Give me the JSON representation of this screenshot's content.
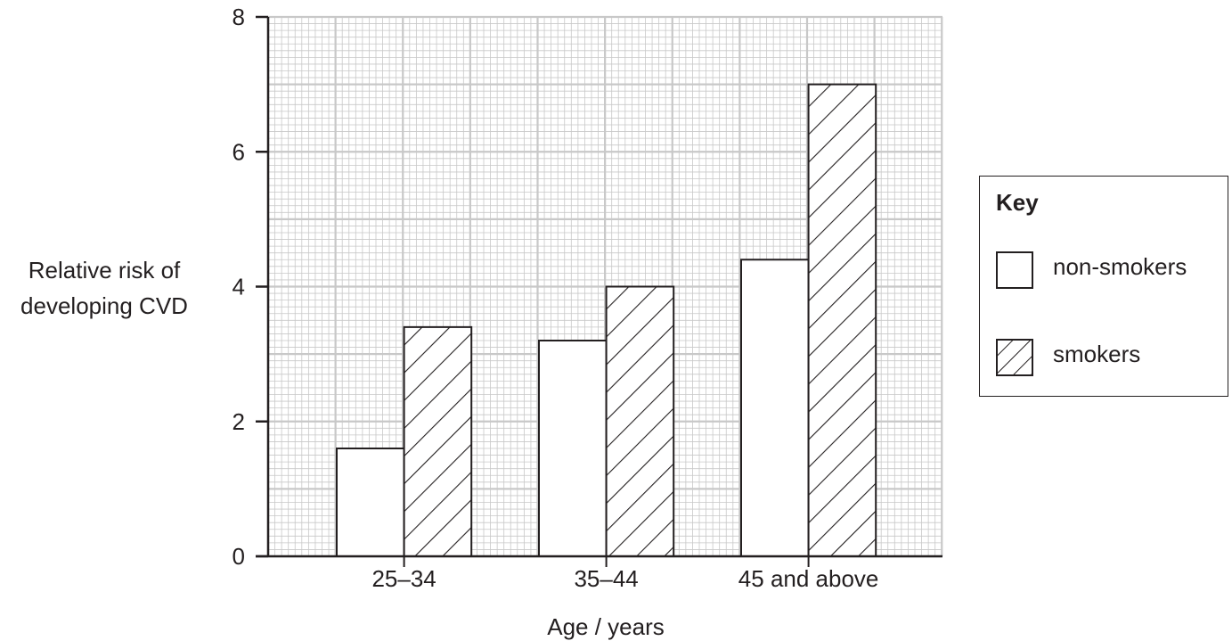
{
  "chart_data": {
    "type": "bar",
    "categories": [
      "25–34",
      "35–44",
      "45 and above"
    ],
    "series": [
      {
        "name": "non-smokers",
        "values": [
          1.6,
          3.2,
          4.4
        ],
        "pattern": "none"
      },
      {
        "name": "smokers",
        "values": [
          3.4,
          4.0,
          7.0
        ],
        "pattern": "diagonal-hatch"
      }
    ],
    "ylim": [
      0,
      8
    ],
    "yticks": [
      "0",
      "2",
      "4",
      "6",
      "8"
    ],
    "ylabel_lines": [
      "Relative risk of",
      "developing CVD"
    ],
    "xlabel": "Age / years",
    "grid": true,
    "legend": {
      "title": "Key",
      "placement": "right"
    },
    "colors": {
      "grid": "#c8c8c8",
      "ink": "#231f20",
      "fill": "#ffffff"
    }
  }
}
